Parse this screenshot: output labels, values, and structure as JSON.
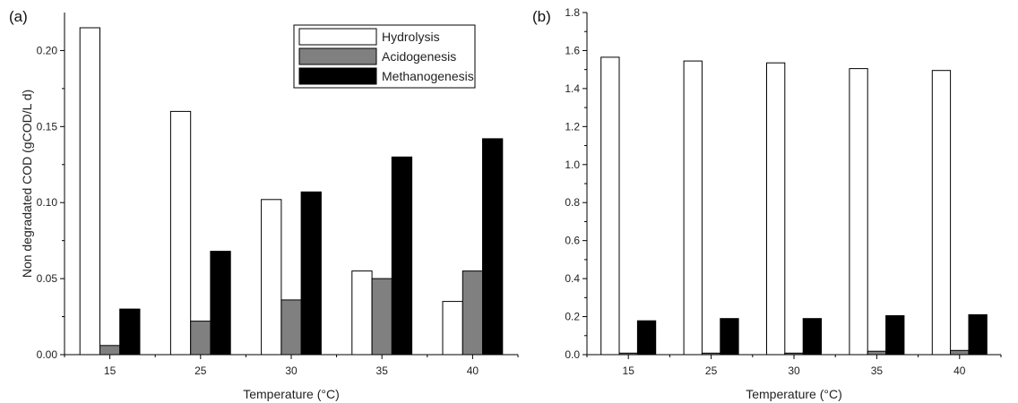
{
  "colors": {
    "Hydrolysis": "#ffffff",
    "Acidogenesis": "#808080",
    "Methanogenesis": "#000000",
    "outline": "#000000"
  },
  "chart_data": [
    {
      "panel_label": "(a)",
      "type": "bar",
      "categories": [
        "15",
        "25",
        "30",
        "35",
        "40"
      ],
      "series": [
        {
          "name": "Hydrolysis",
          "values": [
            0.215,
            0.16,
            0.102,
            0.055,
            0.035
          ]
        },
        {
          "name": "Acidogenesis",
          "values": [
            0.006,
            0.022,
            0.036,
            0.05,
            0.055
          ]
        },
        {
          "name": "Methanogenesis",
          "values": [
            0.03,
            0.068,
            0.107,
            0.13,
            0.142
          ]
        }
      ],
      "xlabel": "Temperature (°C)",
      "ylabel": "Non degradated COD (gCOD/L d)",
      "ylim": [
        0,
        0.225
      ],
      "yticks": [
        "0.00",
        "0.05",
        "0.10",
        "0.15",
        "0.20"
      ],
      "legend": "top-right",
      "grid": false
    },
    {
      "panel_label": "(b)",
      "type": "bar",
      "categories": [
        "15",
        "25",
        "30",
        "35",
        "40"
      ],
      "series": [
        {
          "name": "Hydrolysis",
          "values": [
            1.565,
            1.545,
            1.535,
            1.505,
            1.495
          ]
        },
        {
          "name": "Acidogenesis",
          "values": [
            0.008,
            0.008,
            0.008,
            0.018,
            0.022
          ]
        },
        {
          "name": "Methanogenesis",
          "values": [
            0.178,
            0.19,
            0.19,
            0.205,
            0.21
          ]
        }
      ],
      "xlabel": "Temperature (°C)",
      "ylabel": "",
      "ylim": [
        0,
        1.8
      ],
      "yticks": [
        "0.0",
        "0.2",
        "0.4",
        "0.6",
        "0.8",
        "1.0",
        "1.2",
        "1.4",
        "1.6",
        "1.8"
      ],
      "grid": false
    }
  ]
}
